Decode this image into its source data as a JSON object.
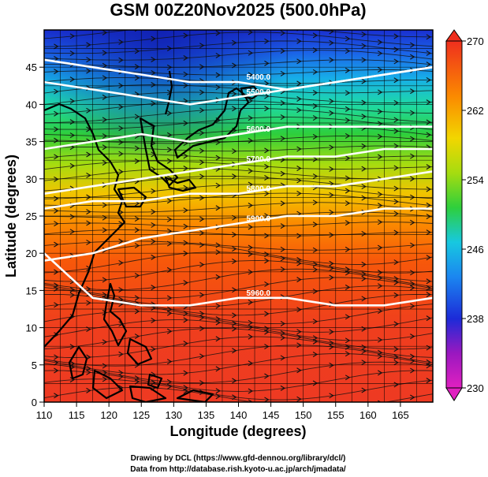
{
  "title": "GSM 00Z20Nov2025 (500.0hPa)",
  "x_axis": {
    "label": "Longitude (degrees)",
    "ticks": [
      "110",
      "115",
      "120",
      "125",
      "130",
      "135",
      "140",
      "145",
      "150",
      "155",
      "160",
      "165"
    ],
    "range": [
      110,
      170
    ]
  },
  "y_axis": {
    "label": "Latitude  (degrees)",
    "ticks": [
      "0",
      "5",
      "10",
      "15",
      "20",
      "25",
      "30",
      "35",
      "40",
      "45"
    ],
    "range": [
      0,
      50
    ]
  },
  "colorbar": {
    "ticks": [
      "230",
      "238",
      "246",
      "254",
      "262",
      "270"
    ],
    "range": [
      230,
      270
    ],
    "colors": [
      "#e020c0",
      "#7a00b0",
      "#1c2bd8",
      "#1b86f0",
      "#17c8e0",
      "#1ed9a6",
      "#2ecf3c",
      "#a6dc10",
      "#f2e600",
      "#fb9d00",
      "#f75a0a",
      "#ef2f1e"
    ]
  },
  "contours": [
    {
      "label": "5400.0",
      "lat_at": [
        46,
        45,
        44,
        43,
        43,
        42,
        43,
        44,
        45
      ]
    },
    {
      "label": "5500.0",
      "lat_at": [
        43,
        42,
        41,
        40,
        41,
        42,
        43,
        44,
        45
      ]
    },
    {
      "label": "5600.0",
      "lat_at": [
        34,
        35,
        36,
        35,
        36,
        37,
        37,
        37,
        37
      ]
    },
    {
      "label": "5700.0",
      "lat_at": [
        28,
        29,
        30,
        31,
        32,
        33,
        33,
        34,
        34
      ]
    },
    {
      "label": "5800.0",
      "lat_at": [
        26,
        27,
        27,
        28,
        28,
        29,
        29,
        30,
        31
      ]
    },
    {
      "label": "5900.0",
      "lat_at": [
        19,
        20,
        22,
        23,
        24,
        25,
        25,
        26,
        26
      ]
    },
    {
      "label": "5960.0",
      "lat_at": [
        20,
        14,
        13,
        13,
        14,
        14,
        13,
        13,
        14
      ]
    }
  ],
  "credits": {
    "line1": "Drawing by DCL (https://www.gfd-dennou.org/library/dcl/)",
    "line2": "Data from http://database.rish.kyoto-u.ac.jp/arch/jmadata/"
  }
}
